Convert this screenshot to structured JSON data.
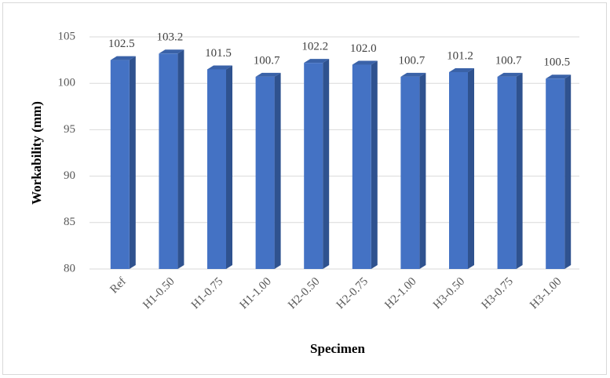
{
  "chart_data": {
    "type": "bar",
    "x_label": "Specimen",
    "y_label": "Workability (mm)",
    "categories": [
      "Ref",
      "H1-0.50",
      "H1-0.75",
      "H1-1.00",
      "H2-0.50",
      "H2-0.75",
      "H2-1.00",
      "H3-0.50",
      "H3-0.75",
      "H3-1.00"
    ],
    "values": [
      102.5,
      103.2,
      101.5,
      100.7,
      102.2,
      102.0,
      100.7,
      101.2,
      100.7,
      100.5
    ],
    "value_labels": [
      "102.5",
      "103.2",
      "101.5",
      "100.7",
      "102.2",
      "102.0",
      "100.7",
      "101.2",
      "100.7",
      "100.5"
    ],
    "color": "#4472c4",
    "ylim": [
      80,
      105
    ],
    "yticks": [
      80,
      85,
      90,
      95,
      100,
      105
    ],
    "grid": true
  }
}
